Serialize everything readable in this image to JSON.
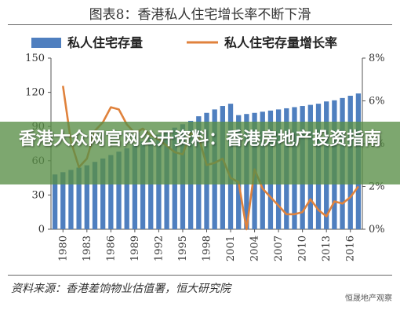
{
  "figure_title": "图表8：香港私人住宅增长率不断下滑",
  "source": "资料来源：香港差饷物业估值署，恒大研究院",
  "watermark": "恒晟地产观察",
  "overlay_banner": "香港大众网官网公开资料：香港房地产投资指南",
  "colors": {
    "bar": "#4f7fbf",
    "bar_light": "#a9c2e3",
    "line": "#e0823c",
    "banner": "#588e46"
  },
  "chart_data": {
    "type": "bar",
    "title": "",
    "xlabel": "",
    "ylabel": "",
    "legend_position": "top",
    "grid": false,
    "x": [
      1979,
      1980,
      1981,
      1982,
      1983,
      1984,
      1985,
      1986,
      1987,
      1988,
      1989,
      1990,
      1991,
      1992,
      1993,
      1994,
      1995,
      1996,
      1997,
      1998,
      1999,
      2000,
      2001,
      2002,
      2003,
      2004,
      2005,
      2006,
      2007,
      2008,
      2009,
      2010,
      2011,
      2012,
      2013,
      2014,
      2015,
      2016,
      2017
    ],
    "x_tick_labels": [
      "1980",
      "1983",
      "1986",
      "1989",
      "1992",
      "1995",
      "1998",
      "2001",
      "2004",
      "2007",
      "2010",
      "2013",
      "2016"
    ],
    "y_left": {
      "ylim": [
        0,
        150
      ],
      "ticks": [
        "0",
        "30",
        "60",
        "90",
        "120",
        "150"
      ]
    },
    "y_right": {
      "ylim": [
        0,
        8
      ],
      "ticks": [
        "0%",
        "2%",
        "4%",
        "6%",
        "8%"
      ]
    },
    "series": [
      {
        "name": "私人住宅存量",
        "type": "bar",
        "axis": "left",
        "values": [
          48,
          50,
          52,
          54,
          56,
          59,
          62,
          65,
          68,
          71,
          74,
          77,
          80,
          83,
          86,
          89,
          92,
          95,
          99,
          102,
          105,
          108,
          110,
          100,
          101,
          102,
          103,
          104,
          105,
          106,
          107,
          108,
          109,
          110,
          112,
          113,
          115,
          117,
          119
        ]
      },
      {
        "name": "私人住宅存量增长率",
        "type": "line",
        "axis": "right",
        "values": [
          null,
          6.7,
          4.1,
          2.9,
          3.3,
          4.6,
          5.0,
          5.7,
          5.6,
          4.9,
          4.5,
          4.7,
          4.4,
          4.2,
          3.9,
          3.6,
          3.5,
          4.5,
          4.3,
          3.0,
          3.1,
          3.3,
          2.4,
          2.2,
          0.0,
          2.8,
          1.9,
          1.5,
          1.1,
          0.7,
          0.7,
          0.8,
          1.4,
          0.9,
          0.6,
          1.3,
          1.2,
          1.5,
          2.0
        ]
      }
    ]
  }
}
